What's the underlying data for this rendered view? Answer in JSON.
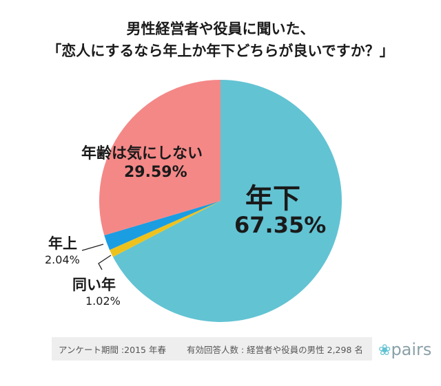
{
  "title_line1": "男性経営者や役員に聞いた、",
  "title_line2": "「恋人にするなら年上か年下どちらが良いですか？」",
  "chart_data": {
    "type": "pie",
    "title": "「恋人にするなら年上か年下どちらが良いですか？」",
    "slices": [
      {
        "label": "年下",
        "value": 67.35,
        "display": "67.35%",
        "color": "#62c3d3"
      },
      {
        "label": "同い年",
        "value": 1.02,
        "display": "1.02%",
        "color": "#eec21c"
      },
      {
        "label": "年上",
        "value": 2.04,
        "display": "2.04%",
        "color": "#1b9de2"
      },
      {
        "label": "年齢は気にしない",
        "value": 29.59,
        "display": "29.59%",
        "color": "#f48887"
      }
    ]
  },
  "footer": {
    "survey_period": "アンケート期間 :2015 年春",
    "respondents": "有効回答人数 : 経営者や役員の男性 2,298 名"
  },
  "logo": {
    "text": "pairs",
    "mark": "❀"
  }
}
